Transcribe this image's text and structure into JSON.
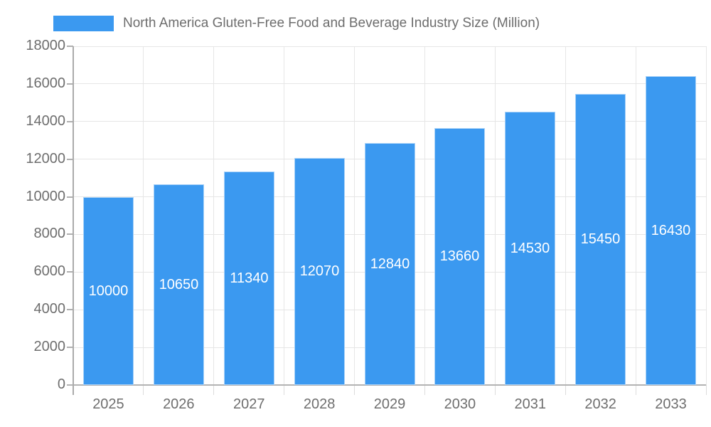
{
  "legend": {
    "label": "North America Gluten-Free Food and Beverage Industry Size (Million)"
  },
  "colors": {
    "bar": "#3b99f0",
    "bar_border": "#a9d2f8",
    "axis_text": "#6e6e6e",
    "grid": "#e6e6e6",
    "axis_line": "#ababab",
    "value_label": "#ffffff"
  },
  "chart_data": {
    "type": "bar",
    "title": "North America Gluten-Free Food and Beverage Industry Size (Million)",
    "categories": [
      "2025",
      "2026",
      "2027",
      "2028",
      "2029",
      "2030",
      "2031",
      "2032",
      "2033"
    ],
    "values": [
      10000,
      10650,
      11340,
      12070,
      12840,
      13660,
      14530,
      15450,
      16430
    ],
    "value_labels": [
      "10000",
      "10650",
      "11340",
      "12070",
      "12840",
      "13660",
      "14530",
      "15450",
      "16430"
    ],
    "xlabel": "",
    "ylabel": "",
    "ylim": [
      0,
      18000
    ],
    "ytick_step": 2000,
    "ytick_labels": [
      "0",
      "2000",
      "4000",
      "6000",
      "8000",
      "10000",
      "12000",
      "14000",
      "16000",
      "18000"
    ],
    "grid": true,
    "legend_position": "top"
  }
}
